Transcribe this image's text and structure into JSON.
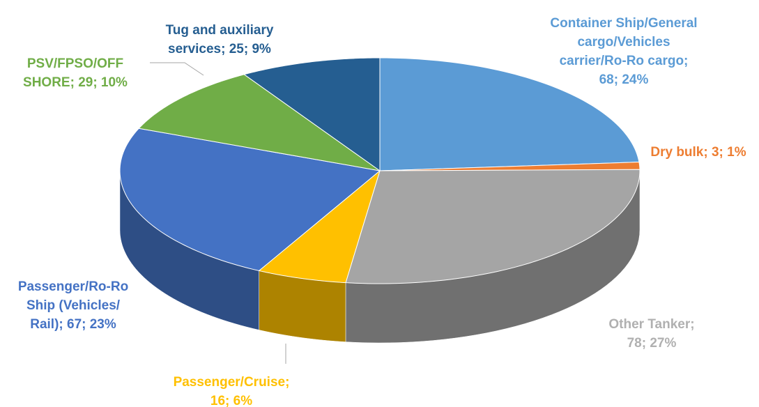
{
  "chart_data": {
    "type": "pie3d",
    "categories": [
      "Container Ship/General cargo/Vehicles carrier/Ro-Ro cargo",
      "Dry bulk",
      "Other Tanker",
      "Passenger/Cruise",
      "Passenger/Ro-Ro Ship (Vehicles/Rail)",
      "PSV/FPSO/OFF SHORE",
      "Tug and auxiliary services"
    ],
    "values": [
      68,
      3,
      78,
      16,
      67,
      29,
      25
    ],
    "value_labels": [
      "Container Ship/General cargo/Vehicles carrier/Ro-Ro cargo; 68; 24%",
      "Dry bulk; 3; 1%",
      "Other Tanker; 78; 27%",
      "Passenger/Cruise; 16; 6%",
      "Passenger/Ro-Ro Ship (Vehicles/Rail); 67; 23%",
      "PSV/FPSO/OFF SHORE; 29; 10%",
      "Tug and auxiliary services; 25; 9%"
    ],
    "colors": [
      "#5b9bd5",
      "#ed7d31",
      "#a5a5a5",
      "#ffc000",
      "#4472c4",
      "#70ad47",
      "#255e91"
    ],
    "label_colors": [
      "#5b9bd5",
      "#ed7d31",
      "#b0b0b0",
      "#ffc000",
      "#4472c4",
      "#70ad47",
      "#255e91"
    ]
  }
}
